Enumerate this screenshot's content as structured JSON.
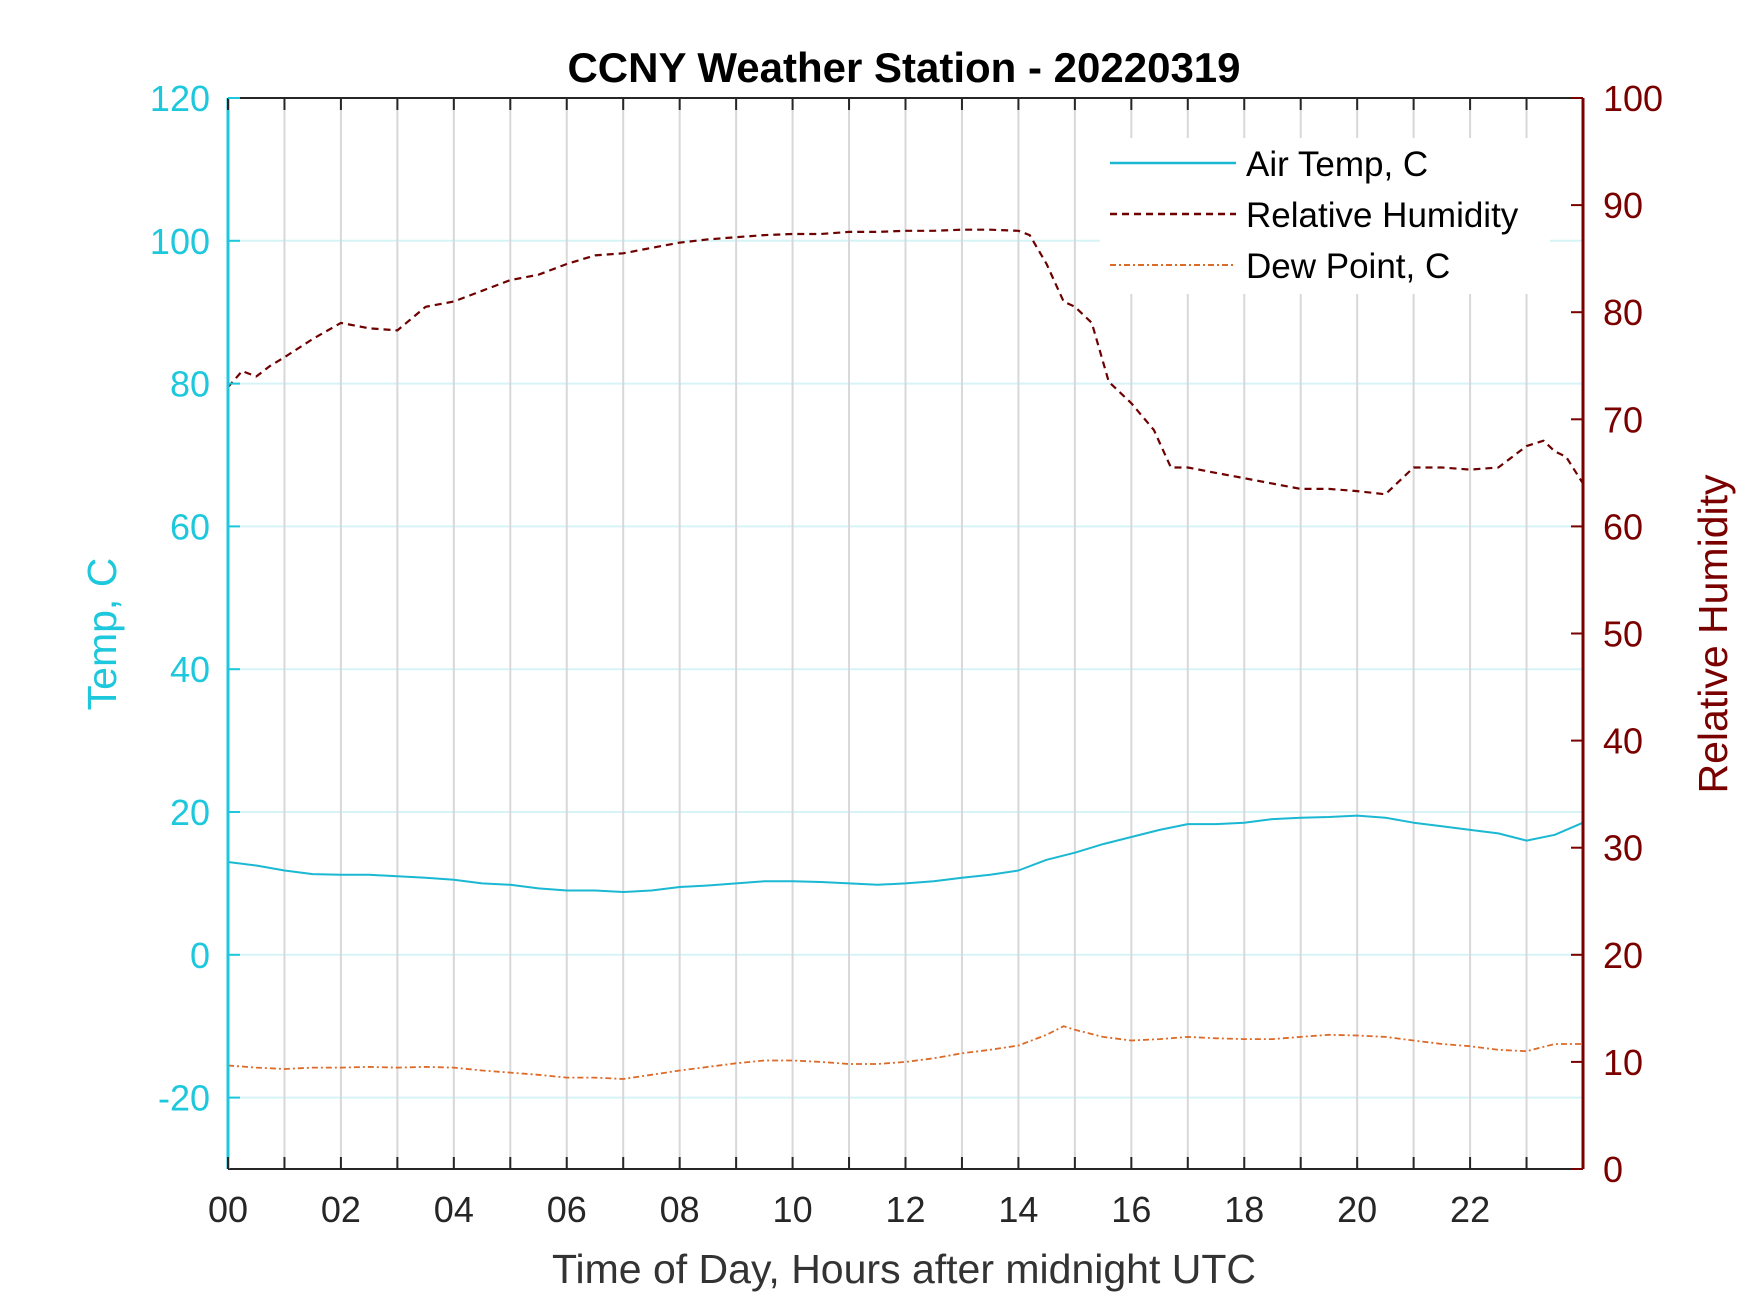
{
  "chart_data": {
    "type": "line",
    "title": "CCNY Weather Station - 20220319",
    "xlabel": "Time of Day, Hours after midnight UTC",
    "ylabel_left": "Temp, C",
    "ylabel_right": "Relative Humidity",
    "xlim": [
      0,
      24
    ],
    "ylim_left": [
      -30,
      120
    ],
    "ylim_right": [
      0,
      100
    ],
    "x_ticks": [
      0,
      2,
      4,
      6,
      8,
      10,
      12,
      14,
      16,
      18,
      20,
      22
    ],
    "x_tick_labels": [
      "00",
      "02",
      "04",
      "06",
      "08",
      "10",
      "12",
      "14",
      "16",
      "18",
      "20",
      "22"
    ],
    "x_minor_ticks": [
      1,
      3,
      5,
      7,
      9,
      11,
      13,
      15,
      17,
      19,
      21,
      23
    ],
    "y_ticks_left": [
      -20,
      0,
      20,
      40,
      60,
      80,
      100,
      120
    ],
    "y_tick_labels_left": [
      "-20",
      "0",
      "20",
      "40",
      "60",
      "80",
      "100",
      "120"
    ],
    "y_ticks_right": [
      0,
      10,
      20,
      30,
      40,
      50,
      60,
      70,
      80,
      90,
      100
    ],
    "y_tick_labels_right": [
      "0",
      "10",
      "20",
      "30",
      "40",
      "50",
      "60",
      "70",
      "80",
      "90",
      "100"
    ],
    "grid": true,
    "legend_position": "top-right",
    "colors": {
      "left_axis": "#1ec8dc",
      "right_axis": "#7a0000",
      "air_temp": "#1ab8d2",
      "humidity": "#6e0000",
      "dew_point": "#dc6a28",
      "vertical_grid": "#d8d8d8",
      "horizontal_grid": "#d6f3f7"
    },
    "series": [
      {
        "name": "Air Temp, C",
        "axis": "left",
        "style": "solid",
        "x": [
          0,
          0.5,
          1,
          1.5,
          2,
          2.5,
          3,
          3.5,
          4,
          4.5,
          5,
          5.5,
          6,
          6.5,
          7,
          7.5,
          8,
          8.5,
          9,
          9.5,
          10,
          10.5,
          11,
          11.5,
          12,
          12.5,
          13,
          13.5,
          14,
          14.5,
          15,
          15.5,
          16,
          16.5,
          17,
          17.5,
          18,
          18.5,
          19,
          19.5,
          20,
          20.5,
          21,
          21.5,
          22,
          22.5,
          23,
          23.5,
          24
        ],
        "values": [
          13.0,
          12.5,
          11.8,
          11.3,
          11.2,
          11.2,
          11.0,
          10.8,
          10.5,
          10.0,
          9.8,
          9.3,
          9.0,
          9.0,
          8.8,
          9.0,
          9.5,
          9.7,
          10.0,
          10.3,
          10.3,
          10.2,
          10.0,
          9.8,
          10.0,
          10.3,
          10.8,
          11.2,
          11.8,
          13.3,
          14.3,
          15.5,
          16.5,
          17.5,
          18.3,
          18.3,
          18.5,
          19.0,
          19.2,
          19.3,
          19.5,
          19.2,
          18.5,
          18.0,
          17.5,
          17.0,
          16.0,
          16.8,
          18.5
        ]
      },
      {
        "name": "Relative Humidity",
        "axis": "right",
        "style": "dashed",
        "x": [
          0,
          0.25,
          0.5,
          0.75,
          1,
          1.5,
          2,
          2.5,
          3,
          3.5,
          4,
          4.5,
          5,
          5.5,
          6,
          6.5,
          7,
          7.5,
          8,
          8.5,
          9,
          9.5,
          10,
          10.5,
          11,
          11.5,
          12,
          12.5,
          13,
          13.5,
          14,
          14.2,
          14.5,
          14.8,
          15.0,
          15.3,
          15.6,
          16.0,
          16.4,
          16.7,
          17.0,
          17.5,
          18.0,
          18.5,
          19.0,
          19.5,
          20.0,
          20.5,
          21.0,
          21.5,
          22.0,
          22.5,
          23.0,
          23.3,
          23.5,
          23.7,
          24.0
        ],
        "values": [
          73.0,
          74.5,
          74.0,
          75.0,
          75.8,
          77.5,
          79.0,
          78.5,
          78.3,
          80.5,
          81.0,
          82.0,
          83.0,
          83.5,
          84.5,
          85.3,
          85.5,
          86.0,
          86.5,
          86.8,
          87.0,
          87.2,
          87.3,
          87.3,
          87.5,
          87.5,
          87.6,
          87.6,
          87.7,
          87.7,
          87.6,
          87.2,
          84.5,
          81.0,
          80.5,
          79.0,
          73.5,
          71.5,
          69.0,
          65.5,
          65.5,
          65.0,
          64.5,
          64.0,
          63.5,
          63.5,
          63.3,
          63.0,
          65.5,
          65.5,
          65.3,
          65.5,
          67.5,
          68.0,
          67.0,
          66.5,
          64.0
        ]
      },
      {
        "name": "Dew Point, C",
        "axis": "left",
        "style": "dashdot",
        "x": [
          0,
          0.5,
          1,
          1.5,
          2,
          2.5,
          3,
          3.5,
          4,
          4.5,
          5,
          5.5,
          6,
          6.5,
          7,
          7.5,
          8,
          8.5,
          9,
          9.5,
          10,
          10.5,
          11,
          11.5,
          12,
          12.5,
          13,
          13.5,
          14,
          14.5,
          14.8,
          15.0,
          15.5,
          16,
          16.5,
          17,
          17.5,
          18,
          18.5,
          19,
          19.5,
          20,
          20.5,
          21,
          21.5,
          22,
          22.5,
          23,
          23.5,
          24
        ],
        "values": [
          -15.5,
          -15.8,
          -16.0,
          -15.8,
          -15.8,
          -15.7,
          -15.8,
          -15.7,
          -15.8,
          -16.2,
          -16.5,
          -16.8,
          -17.2,
          -17.2,
          -17.4,
          -16.8,
          -16.2,
          -15.7,
          -15.2,
          -14.8,
          -14.8,
          -15.0,
          -15.3,
          -15.3,
          -15.0,
          -14.5,
          -13.8,
          -13.3,
          -12.7,
          -11.2,
          -10.0,
          -10.5,
          -11.5,
          -12.0,
          -11.8,
          -11.5,
          -11.7,
          -11.8,
          -11.8,
          -11.5,
          -11.2,
          -11.3,
          -11.5,
          -12.0,
          -12.5,
          -12.8,
          -13.3,
          -13.5,
          -12.5,
          -12.5
        ]
      }
    ]
  }
}
